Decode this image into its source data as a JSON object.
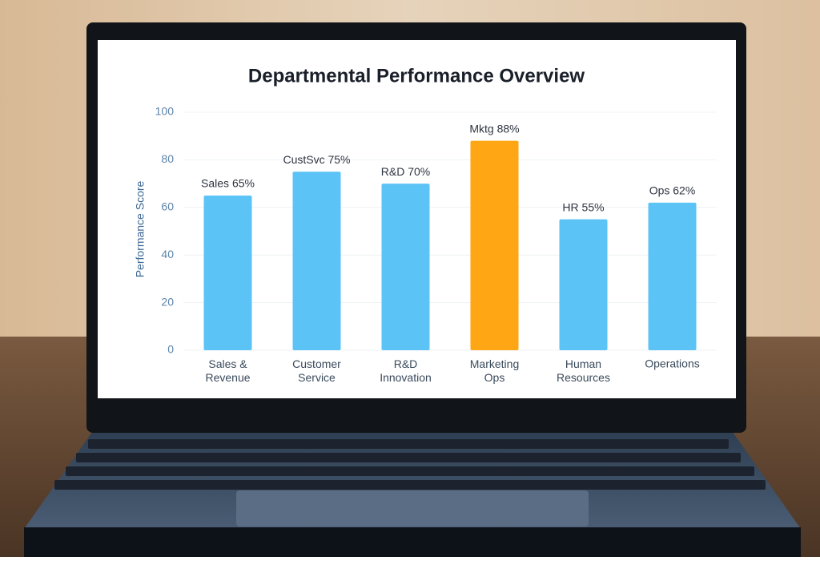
{
  "chart_data": {
    "type": "bar",
    "title": "Departmental Performance Overview",
    "y_label": "Performance Score",
    "categories": [
      "Sales & Revenue",
      "Customer Service",
      "R&D Innovation",
      "Marketing Ops",
      "Human Resources",
      "Operations"
    ],
    "values": [
      65,
      75,
      70,
      88,
      55,
      62
    ],
    "value_labels": [
      "Sales 65%",
      "CustSvc 75%",
      "R&D 70%",
      "Mktg 88%",
      "HR 55%",
      "Ops 62%"
    ],
    "colors": [
      "#5cc3f6",
      "#5cc3f6",
      "#5cc3f6",
      "#ffa614",
      "#5cc3f6",
      "#5cc3f6"
    ],
    "ylim": [
      0,
      100
    ],
    "yticks": [
      0,
      20,
      40,
      60,
      80,
      100
    ],
    "grid": true
  }
}
